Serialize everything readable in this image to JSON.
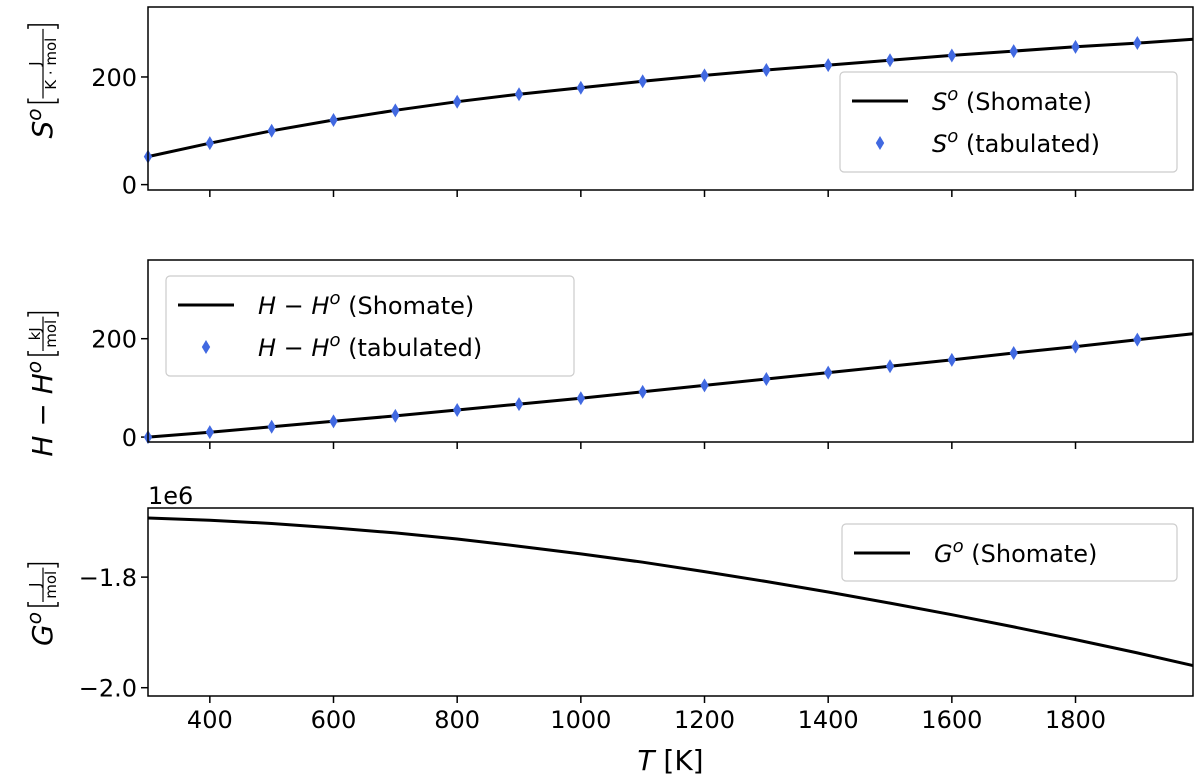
{
  "chart_data": [
    {
      "type": "line",
      "ylabel": {
        "symbol": "S",
        "sup": "o",
        "frac_num": "J",
        "frac_den": "K · mol"
      },
      "xlim": [
        300,
        1990
      ],
      "ylim": [
        -10,
        330
      ],
      "yticks": [
        0,
        200
      ],
      "ytick_labels": [
        "0",
        "200"
      ],
      "legend_position": "lower right",
      "series": [
        {
          "name": "S° (Shomate)",
          "legend": {
            "symbol": "S",
            "sup": "o",
            "suffix": "(Shomate)"
          },
          "style": "line",
          "color": "#000000",
          "x": [
            300,
            400,
            500,
            600,
            700,
            800,
            900,
            1000,
            1100,
            1200,
            1300,
            1400,
            1500,
            1600,
            1700,
            1800,
            1900,
            1990
          ],
          "y": [
            52,
            77,
            100,
            120,
            138,
            154,
            168,
            180,
            192,
            203,
            213,
            222,
            231,
            240,
            248,
            256,
            263,
            270
          ]
        },
        {
          "name": "S° (tabulated)",
          "legend": {
            "symbol": "S",
            "sup": "o",
            "suffix": "(tabulated)"
          },
          "style": "marker",
          "marker": "thin_diamond",
          "color": "#4169e1",
          "x": [
            300,
            400,
            500,
            600,
            700,
            800,
            900,
            1000,
            1100,
            1200,
            1300,
            1400,
            1500,
            1600,
            1700,
            1800,
            1900
          ],
          "y": [
            52,
            77,
            100,
            120,
            138,
            154,
            168,
            180,
            192,
            203,
            213,
            222,
            231,
            240,
            248,
            256,
            263
          ]
        }
      ]
    },
    {
      "type": "line",
      "ylabel": {
        "symbol": "H − H",
        "sup": "o",
        "frac_num": "kJ",
        "frac_den": "mol"
      },
      "xlim": [
        300,
        1990
      ],
      "ylim": [
        -10,
        360
      ],
      "yticks": [
        0,
        200
      ],
      "ytick_labels": [
        "0",
        "200"
      ],
      "legend_position": "upper left",
      "series": [
        {
          "name": "H − H° (Shomate)",
          "legend": {
            "symbol": "H − H",
            "sup": "o",
            "suffix": "(Shomate)"
          },
          "style": "line",
          "color": "#000000",
          "x": [
            300,
            400,
            500,
            600,
            700,
            800,
            900,
            1000,
            1100,
            1200,
            1300,
            1400,
            1500,
            1600,
            1700,
            1800,
            1900,
            1990
          ],
          "y": [
            0,
            10,
            21,
            32,
            43,
            55,
            67,
            79,
            92,
            105,
            118,
            131,
            144,
            157,
            171,
            184,
            198,
            210
          ]
        },
        {
          "name": "H − H° (tabulated)",
          "legend": {
            "symbol": "H − H",
            "sup": "o",
            "suffix": "(tabulated)"
          },
          "style": "marker",
          "marker": "thin_diamond",
          "color": "#4169e1",
          "x": [
            300,
            400,
            500,
            600,
            700,
            800,
            900,
            1000,
            1100,
            1200,
            1300,
            1400,
            1500,
            1600,
            1700,
            1800,
            1900
          ],
          "y": [
            0,
            10,
            21,
            32,
            43,
            55,
            67,
            79,
            92,
            105,
            118,
            131,
            144,
            157,
            171,
            184,
            198
          ]
        }
      ]
    },
    {
      "type": "line",
      "ylabel": {
        "symbol": "G",
        "sup": "o",
        "frac_num": "J",
        "frac_den": "mol"
      },
      "offset_text": "1e6",
      "xlim": [
        300,
        1990
      ],
      "ylim": [
        -2.015,
        -1.675
      ],
      "yticks": [
        -1.8,
        -2.0
      ],
      "ytick_labels": [
        "−1.8",
        "−2.0"
      ],
      "xticks": [
        400,
        600,
        800,
        1000,
        1200,
        1400,
        1600,
        1800
      ],
      "xtick_labels": [
        "400",
        "600",
        "800",
        "1000",
        "1200",
        "1400",
        "1600",
        "1800"
      ],
      "xlabel": {
        "symbol": "T",
        "unit": "[K]"
      },
      "legend_position": "upper right",
      "series": [
        {
          "name": "G° (Shomate)",
          "legend": {
            "symbol": "G",
            "sup": "o",
            "suffix": "(Shomate)"
          },
          "style": "line",
          "color": "#000000",
          "x": [
            300,
            400,
            500,
            600,
            700,
            800,
            900,
            1000,
            1100,
            1200,
            1300,
            1400,
            1500,
            1600,
            1700,
            1800,
            1900,
            1990
          ],
          "y": [
            -1.693,
            -1.697,
            -1.703,
            -1.711,
            -1.72,
            -1.731,
            -1.744,
            -1.758,
            -1.773,
            -1.79,
            -1.808,
            -1.827,
            -1.847,
            -1.868,
            -1.89,
            -1.913,
            -1.937,
            -1.96
          ]
        }
      ]
    }
  ]
}
